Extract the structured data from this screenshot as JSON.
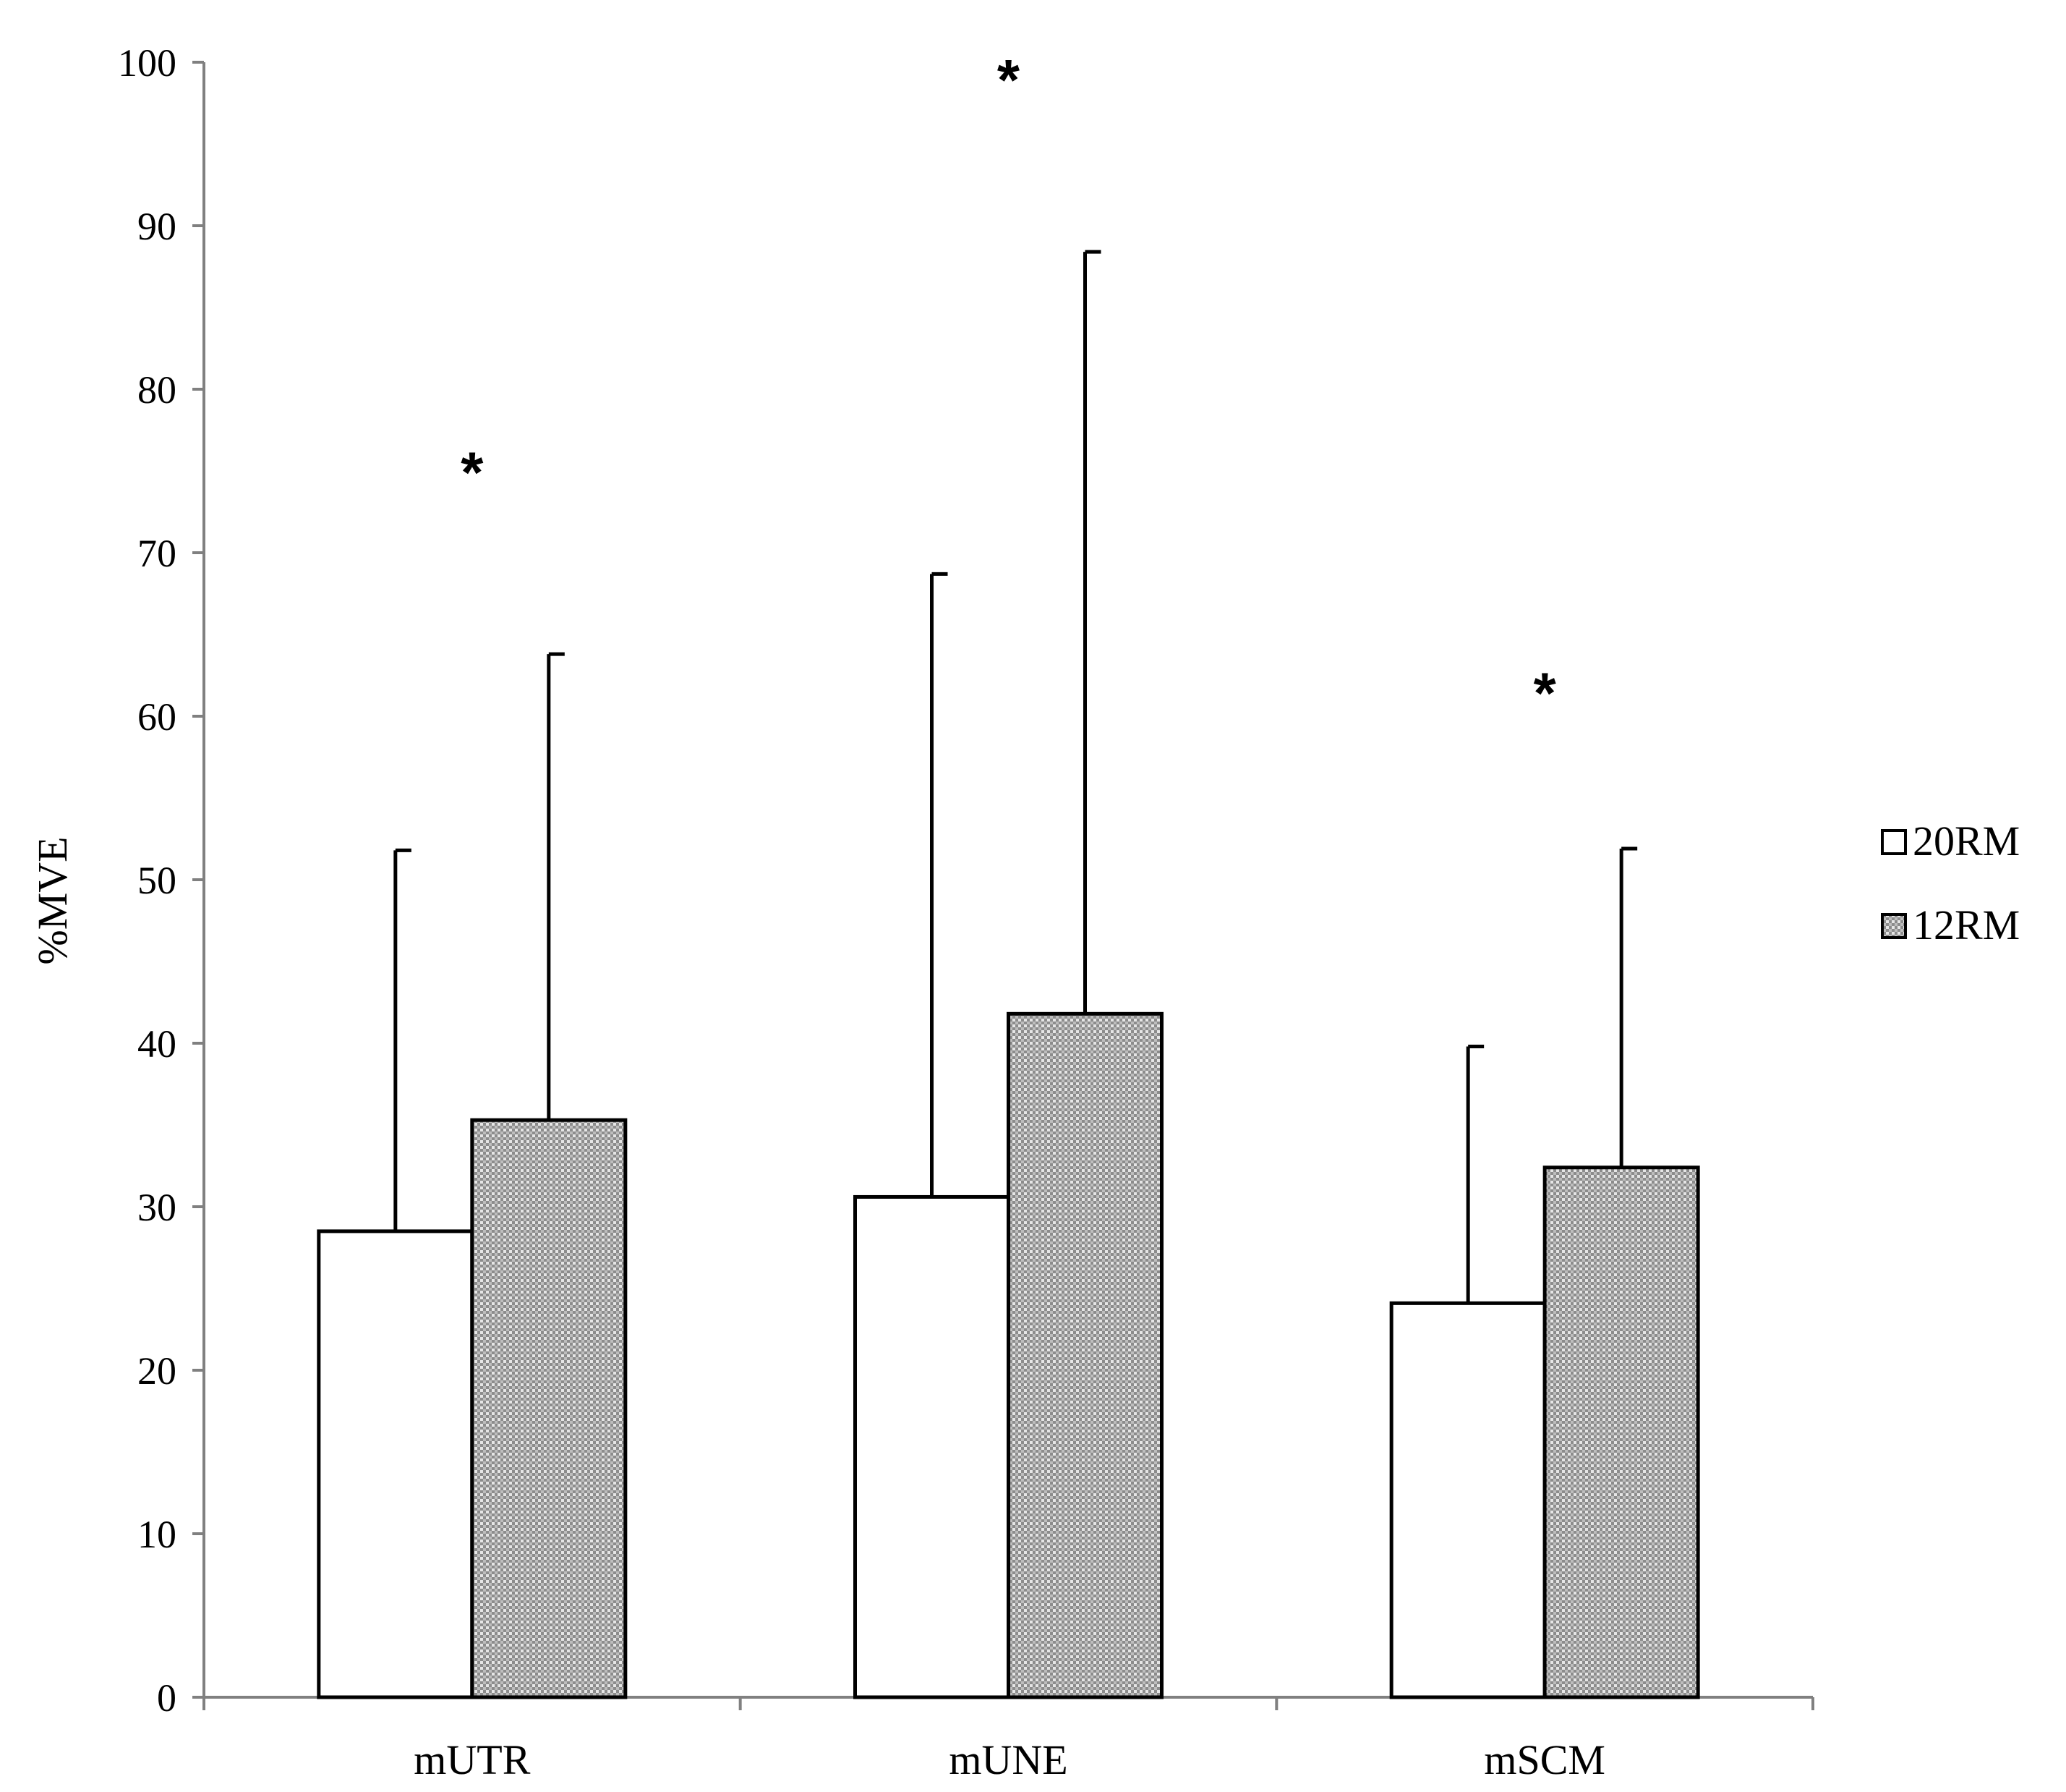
{
  "chart_data": {
    "type": "bar",
    "title": "",
    "xlabel": "",
    "ylabel": "%MVE",
    "ylim": [
      0,
      100
    ],
    "yticks": [
      0,
      10,
      20,
      30,
      40,
      50,
      60,
      70,
      80,
      90,
      100
    ],
    "categories": [
      "mUTR",
      "mUNE",
      "mSCM"
    ],
    "series": [
      {
        "name": "20RM",
        "values": [
          28.5,
          30.6,
          24.1
        ],
        "error_plus": [
          23.3,
          38.1,
          15.7
        ],
        "fill": "#ffffff",
        "pattern": "none"
      },
      {
        "name": "12RM",
        "values": [
          35.3,
          41.8,
          32.4
        ],
        "error_plus": [
          28.5,
          46.6,
          19.5
        ],
        "fill": "#8c8c8c",
        "pattern": "dotted"
      }
    ],
    "annotations": [
      {
        "text": "*",
        "category": "mUTR",
        "y": 76
      },
      {
        "text": "*",
        "category": "mUNE",
        "y": 100
      },
      {
        "text": "*",
        "category": "mSCM",
        "y": 62.5
      }
    ],
    "legend": {
      "position": "right",
      "entries": [
        "20RM",
        "12RM"
      ]
    },
    "grid": false
  }
}
